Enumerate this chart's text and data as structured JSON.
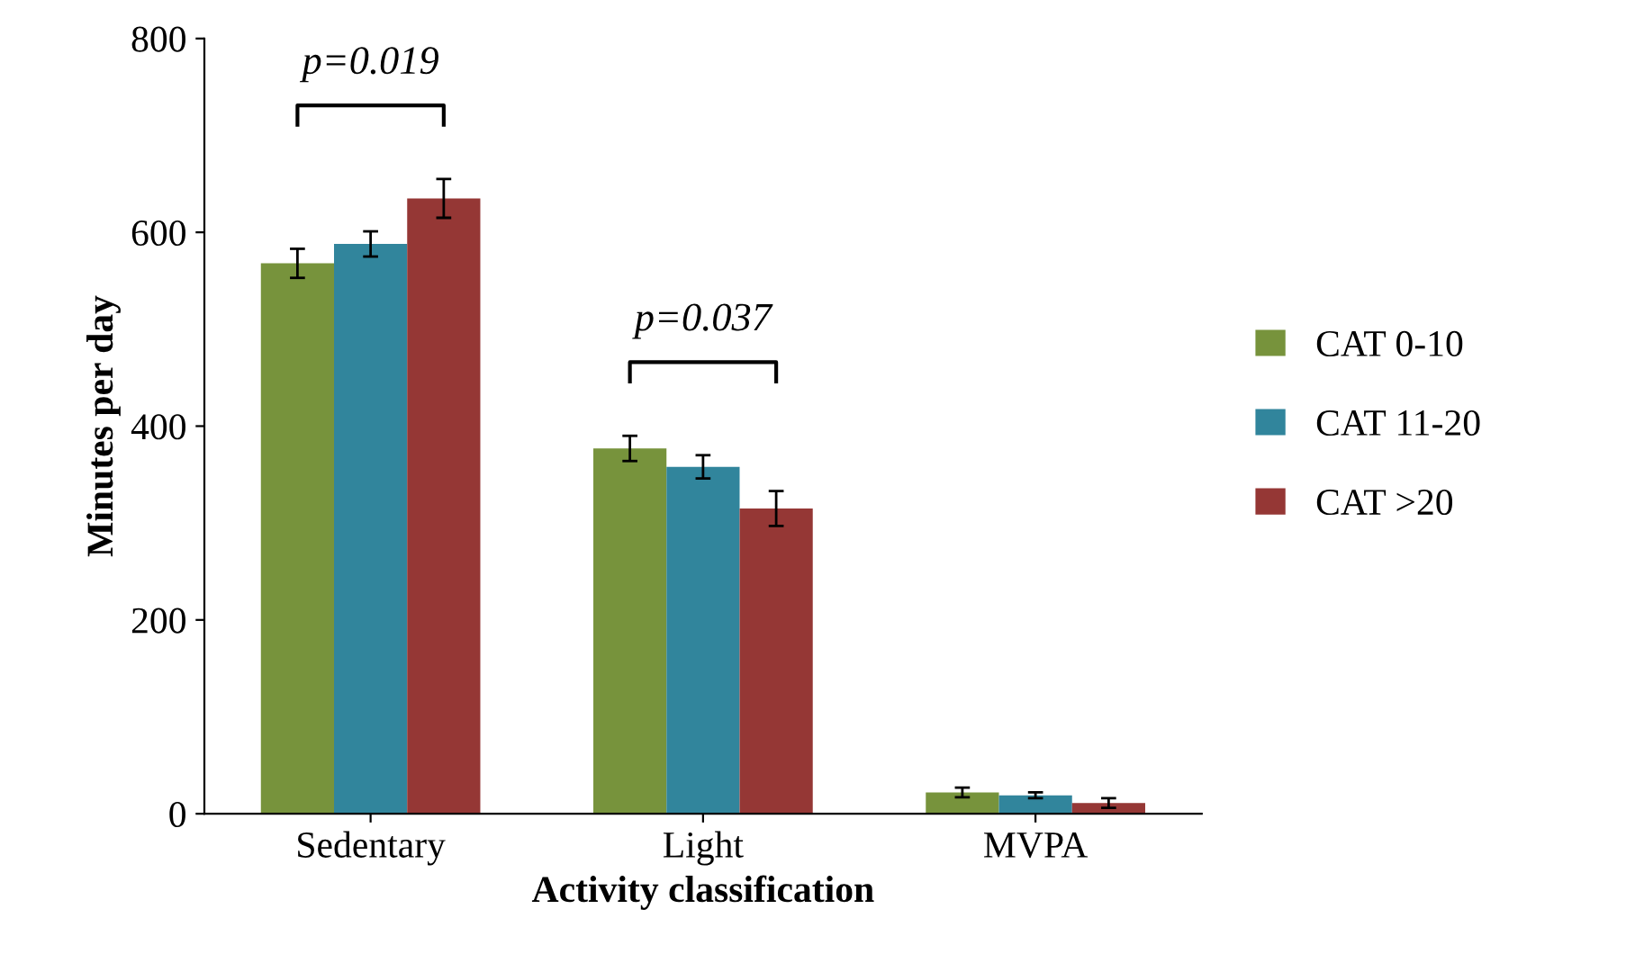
{
  "chart_data": {
    "type": "bar",
    "xlabel": "Activity classification",
    "ylabel": "Minutes per day",
    "categories": [
      "Sedentary",
      "Light",
      "MVPA"
    ],
    "series": [
      {
        "name": "CAT 0-10",
        "color": "#77933c",
        "values": [
          568,
          377,
          22
        ],
        "errors": [
          15,
          13,
          5
        ]
      },
      {
        "name": "CAT 11-20",
        "color": "#31859c",
        "values": [
          588,
          358,
          19
        ],
        "errors": [
          13,
          12,
          3
        ]
      },
      {
        "name": "CAT >20",
        "color": "#953735",
        "values": [
          635,
          315,
          11
        ],
        "errors": [
          20,
          18,
          5
        ]
      }
    ],
    "ylim": [
      0,
      800
    ],
    "yticks": [
      0,
      200,
      400,
      600,
      800
    ],
    "grid": false,
    "legend": "right",
    "annotations": [
      "p=0.019",
      "p=0.037"
    ]
  }
}
